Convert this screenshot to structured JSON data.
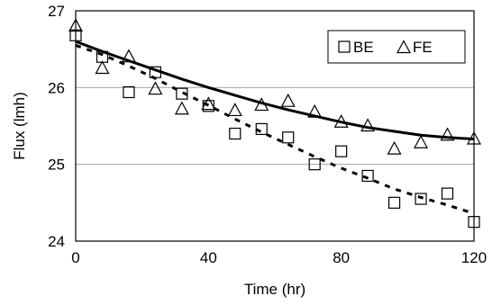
{
  "chart_data": {
    "type": "scatter",
    "title": "",
    "xlabel": "Time (hr)",
    "ylabel": "Flux (lmh)",
    "xlim": [
      0,
      120
    ],
    "ylim": [
      24,
      27
    ],
    "xticks": [
      0,
      40,
      80,
      120
    ],
    "yticks": [
      24,
      25,
      26,
      27
    ],
    "grid": "horizontal",
    "legend_position": "top-right",
    "series": [
      {
        "name": "BE",
        "marker": "square",
        "trend": "dashed",
        "x": [
          0,
          8,
          16,
          24,
          32,
          40,
          48,
          56,
          64,
          72,
          80,
          88,
          96,
          104,
          112,
          120
        ],
        "y": [
          26.68,
          26.4,
          25.94,
          26.2,
          25.92,
          25.76,
          25.4,
          25.46,
          25.35,
          25.0,
          25.17,
          24.85,
          24.5,
          24.55,
          24.62,
          24.25
        ],
        "trend_y": [
          26.55,
          26.43,
          26.28,
          26.12,
          25.94,
          25.77,
          25.59,
          25.42,
          25.26,
          25.1,
          24.95,
          24.82,
          24.68,
          24.57,
          24.47,
          24.36
        ]
      },
      {
        "name": "FE",
        "marker": "triangle",
        "trend": "solid",
        "x": [
          0,
          8,
          16,
          24,
          32,
          40,
          48,
          56,
          64,
          72,
          80,
          88,
          96,
          104,
          112,
          120
        ],
        "y": [
          26.8,
          26.25,
          26.4,
          25.98,
          25.72,
          25.78,
          25.7,
          25.77,
          25.82,
          25.68,
          25.55,
          25.5,
          25.2,
          25.28,
          25.38,
          25.33
        ],
        "trend_y": [
          26.6,
          26.47,
          26.35,
          26.23,
          26.11,
          26.0,
          25.9,
          25.8,
          25.71,
          25.63,
          25.55,
          25.48,
          25.43,
          25.38,
          25.35,
          25.33
        ]
      }
    ]
  }
}
